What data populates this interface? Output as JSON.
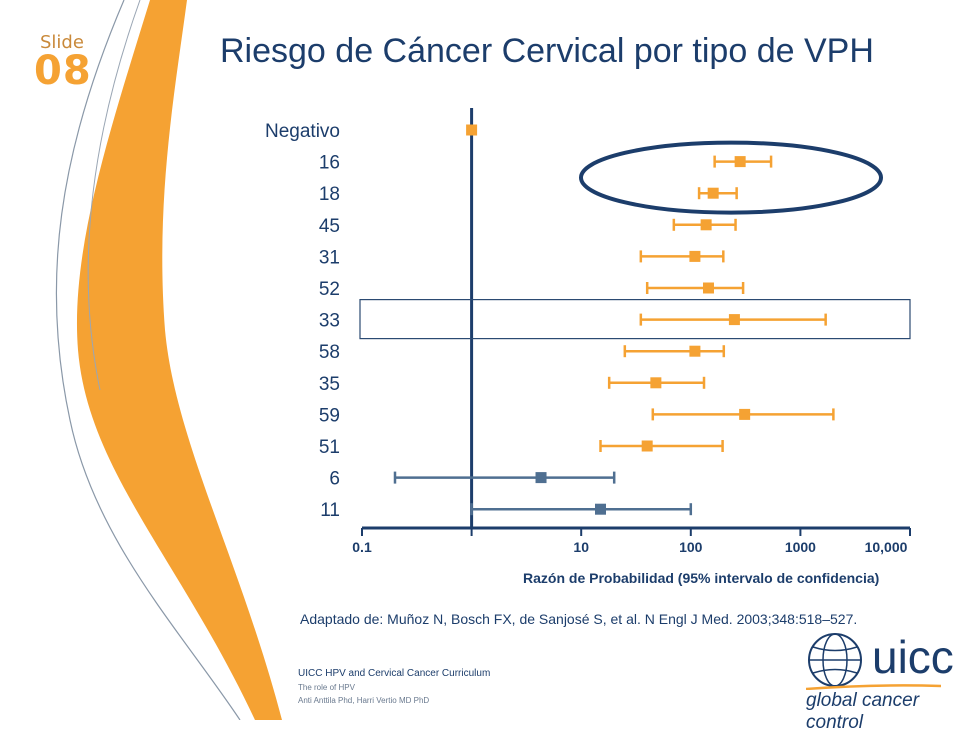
{
  "slide": {
    "label": "Slide",
    "number": "08"
  },
  "title": "Riesgo de Cáncer Cervical por tipo de VPH",
  "chart_data": {
    "type": "forest",
    "title": "Riesgo de Cáncer Cervical por tipo de VPH",
    "xlabel": "Razón de Probabilidad (95% intervalo de confidencia)",
    "xscale": "log",
    "xticks": [
      "0.1",
      "10",
      "100",
      "1000",
      "10,000"
    ],
    "reference_line": 1,
    "rows": [
      {
        "label": "Negativo",
        "or": 1,
        "low": 1,
        "high": 1,
        "group": "orange"
      },
      {
        "label": "16",
        "or": 282,
        "low": 165,
        "high": 540,
        "group": "orange"
      },
      {
        "label": "18",
        "or": 160,
        "low": 119,
        "high": 262,
        "group": "orange"
      },
      {
        "label": "45",
        "or": 138,
        "low": 70,
        "high": 256,
        "group": "orange"
      },
      {
        "label": "31",
        "or": 109,
        "low": 35,
        "high": 198,
        "group": "orange"
      },
      {
        "label": "52",
        "or": 145,
        "low": 40,
        "high": 300,
        "group": "orange"
      },
      {
        "label": "33",
        "or": 250,
        "low": 35,
        "high": 1700,
        "group": "orange"
      },
      {
        "label": "58",
        "or": 109,
        "low": 25,
        "high": 200,
        "group": "orange"
      },
      {
        "label": "35",
        "or": 48,
        "low": 18,
        "high": 132,
        "group": "orange"
      },
      {
        "label": "59",
        "or": 310,
        "low": 45,
        "high": 2000,
        "group": "orange"
      },
      {
        "label": "51",
        "or": 40,
        "low": 15,
        "high": 195,
        "group": "orange"
      },
      {
        "label": "6",
        "or": 4.3,
        "low": 0.2,
        "high": 20,
        "group": "blue"
      },
      {
        "label": "11",
        "or": 15,
        "low": 1.0,
        "high": 100,
        "group": "blue"
      }
    ],
    "highlight_ellipse_row": "16",
    "highlight_box_row": "33"
  },
  "citation": "Adaptado de: Muñoz N, Bosch FX, de Sanjosé S, et al. N Engl J Med. 2003;348:518–527.",
  "footer": {
    "title": "UICC  HPV and Cervical Cancer Curriculum",
    "subtitle": "The role of HPV",
    "authors": "Anti Anttila Phd, Harri Vertio MD PhD"
  },
  "logo": {
    "word": "uicc",
    "tagline": "global cancer control"
  },
  "colors": {
    "navy": "#1c3d6b",
    "orange": "#f5a233",
    "steel": "#4f6f91",
    "box": "#2b4a72"
  }
}
